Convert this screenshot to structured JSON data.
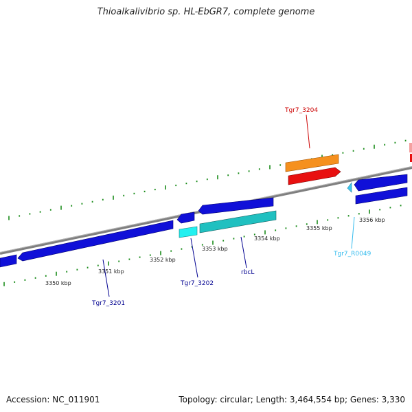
{
  "title": "Thioalkalivibrio sp. HL-EbGR7, complete genome",
  "footer": {
    "accession": "Accession: NC_011901",
    "summary": "Topology: circular; Length: 3,464,554 bp; Genes: 3,330"
  },
  "colors": {
    "backbone": "#7f7f7f",
    "tick": "#1a8c1a",
    "cds_blue": "#1010d8",
    "cds_teal": "#20c0c0",
    "cds_cyan": "#22f0f0",
    "cds_orange": "#f5901e",
    "cds_red": "#e81010",
    "rna_lightblue": "#40c8f0",
    "label_red": "#cc0000",
    "label_navy": "#000090",
    "label_lightblue": "#33bbee"
  },
  "scale_labels": [
    "3350 kbp",
    "3351 kbp",
    "3352 kbp",
    "3353 kbp",
    "3354 kbp",
    "3355 kbp",
    "3356 kbp"
  ],
  "gene_labels": {
    "tgr7_3204": "Tgr7_3204",
    "tgr7_3201": "Tgr7_3201",
    "tgr7_3202": "Tgr7_3202",
    "rbcl": "rbcL",
    "tgr7_r0049": "Tgr7_R0049"
  }
}
